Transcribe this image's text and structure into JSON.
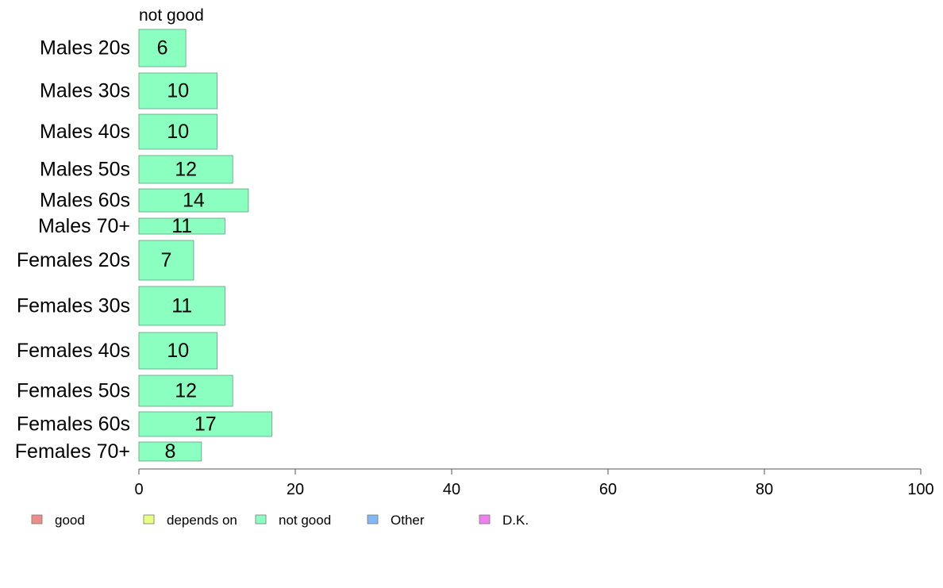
{
  "chart_data": {
    "type": "bar",
    "orientation": "horizontal",
    "title": "",
    "panel_label": "not good",
    "categories": [
      "Males 20s",
      "Males 30s",
      "Males 40s",
      "Males 50s",
      "Males 60s",
      "Males 70+",
      "Females 20s",
      "Females 30s",
      "Females 40s",
      "Females 50s",
      "Females 60s",
      "Females 70+"
    ],
    "series": [
      {
        "name": "not good",
        "color": "#8affc0",
        "values": [
          6,
          10,
          10,
          12,
          14,
          11,
          7,
          11,
          10,
          12,
          17,
          8
        ]
      }
    ],
    "data_labels": [
      "6",
      "10",
      "10",
      "12",
      "14",
      "11",
      "7",
      "11",
      "10",
      "12",
      "17",
      "8"
    ],
    "xlim": [
      0,
      100
    ],
    "x_ticks": [
      0,
      20,
      40,
      60,
      80,
      100
    ],
    "x_tick_labels": [
      "0",
      "20",
      "40",
      "60",
      "80",
      "100"
    ],
    "xlabel": "",
    "ylabel": "",
    "grid": false,
    "legend": {
      "placement": "bottom",
      "entries": [
        {
          "label": "good",
          "color": "#f08c88"
        },
        {
          "label": "depends on",
          "color": "#e8ff80"
        },
        {
          "label": "not good",
          "color": "#8affc0"
        },
        {
          "label": "Other",
          "color": "#84b8f4"
        },
        {
          "label": "D.K.",
          "color": "#f080f0"
        }
      ]
    }
  }
}
